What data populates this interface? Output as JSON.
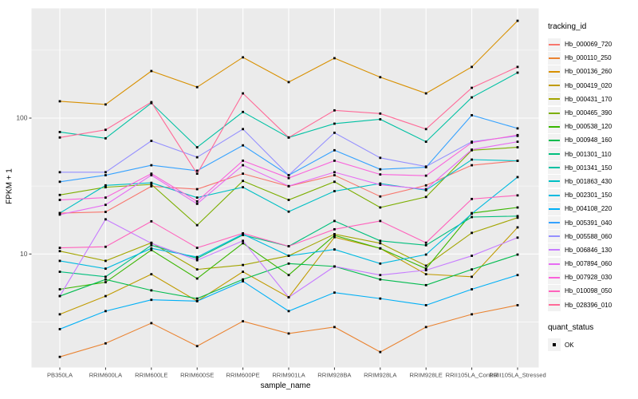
{
  "chart_data": {
    "type": "line",
    "title": "",
    "xlabel": "sample_name",
    "ylabel": "FPKM + 1",
    "y_scale": "log10",
    "panel_bg": "#EBEBEB",
    "grid_color": "#FFFFFF",
    "tick_color": "#333333",
    "tick_label_color": "#4D4D4D",
    "point_shape": "filled-square",
    "point_color": "#000000",
    "y_ticks": [
      {
        "label": "100",
        "value": 100
      },
      {
        "label": "10",
        "value": 10
      }
    ],
    "y_minor_values": [
      3.162,
      31.62,
      316.2
    ],
    "ylim": [
      1.45,
      650
    ],
    "categories": [
      "PB350LA",
      "RRIM600LA",
      "RRIM600LE",
      "RRIM600SE",
      "RRIM600PE",
      "RRIM901LA",
      "RRIM928BA",
      "RRIM928LA",
      "RRIM928LE",
      "RRII105LA_Control",
      "RRII105LA_Stressed"
    ],
    "series": [
      {
        "name": "Hb_000069_720",
        "color": "#F8766D",
        "values": [
          20,
          20.4,
          31.5,
          30,
          39,
          31.5,
          38,
          26.5,
          32,
          45,
          48.5
        ]
      },
      {
        "name": "Hb_000110_250",
        "color": "#EA8331",
        "values": [
          1.75,
          2.2,
          3.1,
          2.1,
          3.2,
          2.6,
          2.9,
          1.9,
          2.9,
          3.6,
          4.2
        ]
      },
      {
        "name": "Hb_000136_260",
        "color": "#D89000",
        "values": [
          133,
          126,
          222,
          169,
          280,
          184,
          276,
          200,
          152,
          238,
          520
        ]
      },
      {
        "name": "Hb_000419_020",
        "color": "#C09B00",
        "values": [
          3.6,
          4.9,
          7.1,
          4.5,
          7.4,
          4.8,
          13.3,
          11,
          7.1,
          6.8,
          15.7
        ]
      },
      {
        "name": "Hb_000431_170",
        "color": "#A3A500",
        "values": [
          10.5,
          8.9,
          12.1,
          7.7,
          8.3,
          9.7,
          14,
          12,
          8.2,
          14.3,
          18.5
        ]
      },
      {
        "name": "Hb_000465_390",
        "color": "#7CAE00",
        "values": [
          27.2,
          31,
          32.5,
          16.3,
          34.5,
          25,
          34,
          22,
          26.3,
          58,
          61
        ]
      },
      {
        "name": "Hb_000538_120",
        "color": "#39B600",
        "values": [
          5.5,
          6.2,
          10.7,
          6.6,
          12,
          7,
          13.7,
          11,
          7.8,
          20,
          22
        ]
      },
      {
        "name": "Hb_000948_160",
        "color": "#00BB4E",
        "values": [
          4.9,
          6.5,
          5.4,
          4.7,
          6.5,
          8.5,
          8.1,
          6.5,
          5.9,
          7.7,
          9.9
        ]
      },
      {
        "name": "Hb_001301_110",
        "color": "#00BF7D",
        "values": [
          7.4,
          6.8,
          11.6,
          9.3,
          13.8,
          11.4,
          17.5,
          12.5,
          11.6,
          18.7,
          19
        ]
      },
      {
        "name": "Hb_001341_150",
        "color": "#00C1A3",
        "values": [
          79,
          71,
          129,
          61,
          111,
          72,
          91,
          98,
          67,
          142,
          216
        ]
      },
      {
        "name": "Hb_001863_430",
        "color": "#00BFC4",
        "values": [
          20,
          32,
          33.4,
          26,
          31,
          20.5,
          29,
          33,
          29.5,
          49.5,
          48.5
        ]
      },
      {
        "name": "Hb_002301_150",
        "color": "#00BAE0",
        "values": [
          8.9,
          7.8,
          11,
          9.5,
          14,
          9.7,
          10.8,
          8.5,
          9.9,
          19.8,
          36.8
        ]
      },
      {
        "name": "Hb_004108_220",
        "color": "#00B0F6",
        "values": [
          2.8,
          3.8,
          4.6,
          4.5,
          6.3,
          3.8,
          5.2,
          4.7,
          4.2,
          5.5,
          7
        ]
      },
      {
        "name": "Hb_005391_040",
        "color": "#35A2FF",
        "values": [
          34,
          38,
          45,
          41,
          63,
          38,
          58,
          42,
          43.5,
          105,
          84
        ]
      },
      {
        "name": "Hb_005588_060",
        "color": "#9590FF",
        "values": [
          40,
          40,
          68,
          51.5,
          83,
          38,
          78,
          51,
          44,
          67,
          74
        ]
      },
      {
        "name": "Hb_006846_130",
        "color": "#C77CFF",
        "values": [
          4.9,
          18,
          12,
          9,
          12.5,
          4.8,
          8.1,
          7,
          7.6,
          9.7,
          13.2
        ]
      },
      {
        "name": "Hb_007894_060",
        "color": "#E76BF3",
        "values": [
          19.5,
          23,
          38,
          23.4,
          45,
          31.6,
          40,
          32.3,
          30,
          58.6,
          67
        ]
      },
      {
        "name": "Hb_007928_030",
        "color": "#FA62DB",
        "values": [
          25,
          26,
          39,
          24.4,
          48.6,
          36.2,
          48.6,
          38.5,
          37.7,
          66,
          75
        ]
      },
      {
        "name": "Hb_010098_050",
        "color": "#FF62BC",
        "values": [
          11.1,
          11.3,
          17.4,
          11.1,
          14.2,
          11.4,
          15.2,
          17.5,
          12.1,
          25.4,
          27
        ]
      },
      {
        "name": "Hb_028396_010",
        "color": "#FF6A98",
        "values": [
          72,
          82,
          131,
          39,
          152,
          72,
          114,
          108,
          83,
          167,
          238
        ]
      }
    ],
    "legend": {
      "color_title": "tracking_id",
      "shape_title": "quant_status",
      "shape_items": [
        {
          "label": "OK",
          "marker": "black-square"
        }
      ],
      "position": "right"
    }
  }
}
